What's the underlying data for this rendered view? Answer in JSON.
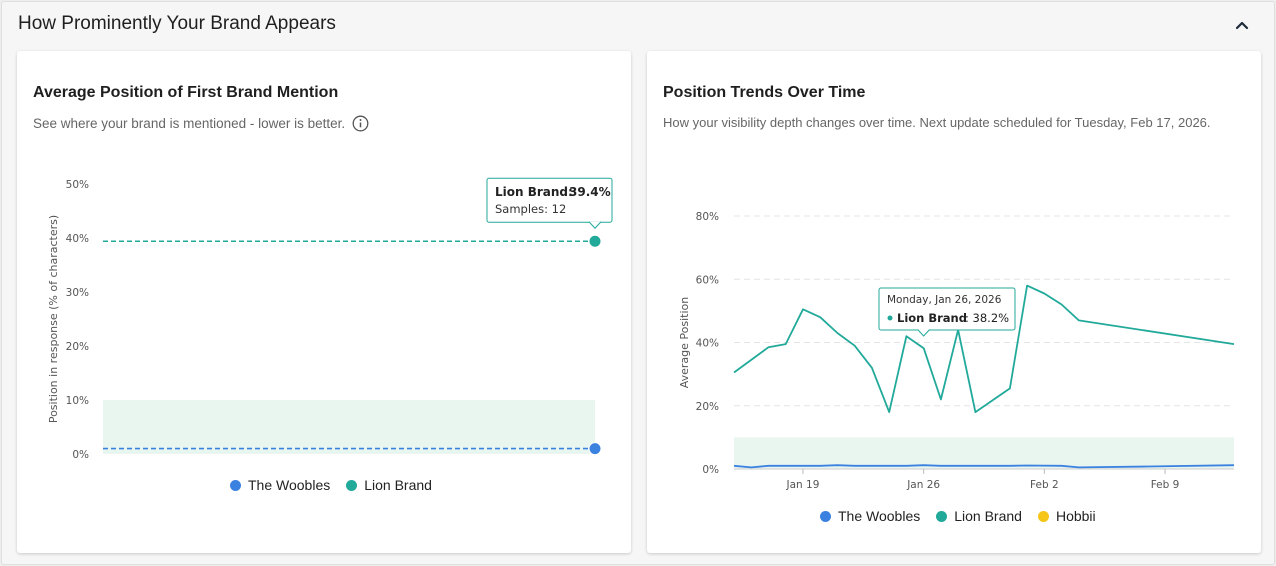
{
  "section": {
    "title": "How Prominently Your Brand Appears",
    "collapse_icon": "chevron-up-icon"
  },
  "colors": {
    "woobles": "#3b82e0",
    "lion": "#21a99a",
    "hobbii": "#f5c518",
    "band": "#e9f6f0"
  },
  "left_card": {
    "title": "Average Position of First Brand Mention",
    "subtitle": "See where your brand is mentioned - lower is better.",
    "info_icon": "info-icon",
    "tooltip": {
      "brand": "Lion Brand",
      "value": "39.4%",
      "samples_label": "Samples: 12"
    }
  },
  "right_card": {
    "title": "Position Trends Over Time",
    "subtitle": "How your visibility depth changes over time. Next update scheduled for Tuesday, Feb 17, 2026.",
    "tooltip": {
      "date": "Monday, Jan 26, 2026",
      "brand": "Lion Brand",
      "value": "38.2%"
    }
  },
  "legend_left": [
    "The Woobles",
    "Lion Brand"
  ],
  "legend_right": [
    "The Woobles",
    "Lion Brand",
    "Hobbii"
  ],
  "chart_data": [
    {
      "type": "line",
      "title": "Average Position of First Brand Mention",
      "ylabel": "Position in response (% of characters)",
      "ylim": [
        0,
        50
      ],
      "yticks": [
        "0%",
        "10%",
        "20%",
        "30%",
        "40%",
        "50%"
      ],
      "band": [
        0,
        10
      ],
      "series": [
        {
          "name": "The Woobles",
          "value": 1,
          "color": "#3b82e0"
        },
        {
          "name": "Lion Brand",
          "value": 39.4,
          "color": "#21a99a"
        }
      ]
    },
    {
      "type": "line",
      "title": "Position Trends Over Time",
      "ylabel": "Average Position",
      "ylim": [
        0,
        80
      ],
      "yticks": [
        "0%",
        "20%",
        "40%",
        "60%",
        "80%"
      ],
      "xlim": [
        0,
        29
      ],
      "xticks": [
        {
          "label": "Jan 19",
          "x": 4
        },
        {
          "label": "Jan 26",
          "x": 11
        },
        {
          "label": "Feb 2",
          "x": 18
        },
        {
          "label": "Feb 9",
          "x": 25
        }
      ],
      "band": [
        0,
        10
      ],
      "series": [
        {
          "name": "Lion Brand",
          "color": "#21a99a",
          "points": [
            [
              0,
              30.5
            ],
            [
              2,
              38.5
            ],
            [
              3,
              39.5
            ],
            [
              4,
              50.5
            ],
            [
              5,
              48
            ],
            [
              6,
              43
            ],
            [
              7,
              39
            ],
            [
              8,
              32
            ],
            [
              9,
              18
            ],
            [
              10,
              42
            ],
            [
              11,
              38.2
            ],
            [
              12,
              22
            ],
            [
              13,
              44
            ],
            [
              14,
              18
            ],
            [
              16,
              25.5
            ],
            [
              17,
              58
            ],
            [
              18,
              55.5
            ],
            [
              19,
              52
            ],
            [
              20,
              47
            ],
            [
              29,
              39.5
            ]
          ]
        },
        {
          "name": "The Woobles",
          "color": "#3b82e0",
          "points": [
            [
              0,
              1
            ],
            [
              1,
              0.5
            ],
            [
              2,
              1
            ],
            [
              4,
              1
            ],
            [
              5,
              1
            ],
            [
              6,
              1.2
            ],
            [
              7,
              1
            ],
            [
              10,
              1
            ],
            [
              11,
              1.2
            ],
            [
              12,
              1
            ],
            [
              16,
              1
            ],
            [
              17,
              1.1
            ],
            [
              19,
              1
            ],
            [
              20,
              0.5
            ],
            [
              24,
              0.8
            ],
            [
              29,
              1.2
            ]
          ]
        }
      ]
    }
  ]
}
